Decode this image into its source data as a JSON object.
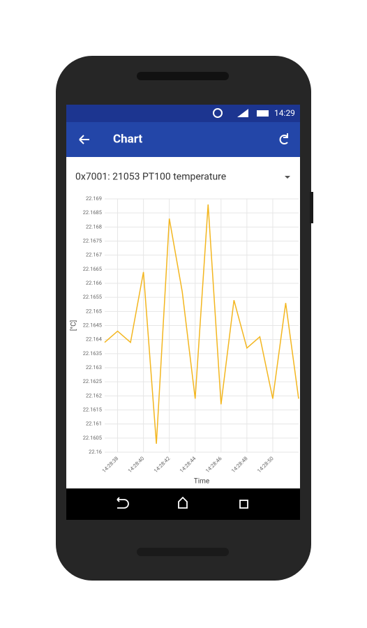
{
  "status_bar": {
    "time": "14:29"
  },
  "app_bar": {
    "title": "Chart"
  },
  "selector": {
    "label": "0x7001: 21053 PT100 temperature"
  },
  "chart_data": {
    "type": "line",
    "x_label": "Time",
    "y_label": "[°C]",
    "x": [
      37,
      38,
      39,
      40,
      41,
      42,
      43,
      44,
      45,
      46,
      47,
      48,
      49,
      50,
      51,
      52
    ],
    "series": [
      {
        "color": "#f3b61f",
        "values": [
          22.1639,
          22.1643,
          22.1639,
          22.1664,
          22.1603,
          22.1683,
          22.1657,
          22.1619,
          22.1688,
          22.1617,
          22.1654,
          22.1637,
          22.1641,
          22.1619,
          22.1653,
          22.1619
        ]
      }
    ],
    "xlim": [
      37,
      52
    ],
    "xticks": [
      {
        "value": 38,
        "label": "14:28:38"
      },
      {
        "value": 40,
        "label": "14:28:40"
      },
      {
        "value": 42,
        "label": "14:28:42"
      },
      {
        "value": 44,
        "label": "14:28:44"
      },
      {
        "value": 46,
        "label": "14:28:46"
      },
      {
        "value": 48,
        "label": "14:28:48"
      },
      {
        "value": 50,
        "label": "14:28:50"
      }
    ],
    "ylim": [
      22.16,
      22.169
    ],
    "yticks": [
      22.16,
      22.1605,
      22.161,
      22.1615,
      22.162,
      22.1625,
      22.163,
      22.1635,
      22.164,
      22.1645,
      22.165,
      22.1655,
      22.166,
      22.1665,
      22.167,
      22.1675,
      22.168,
      22.1685,
      22.169
    ],
    "grid": true
  }
}
